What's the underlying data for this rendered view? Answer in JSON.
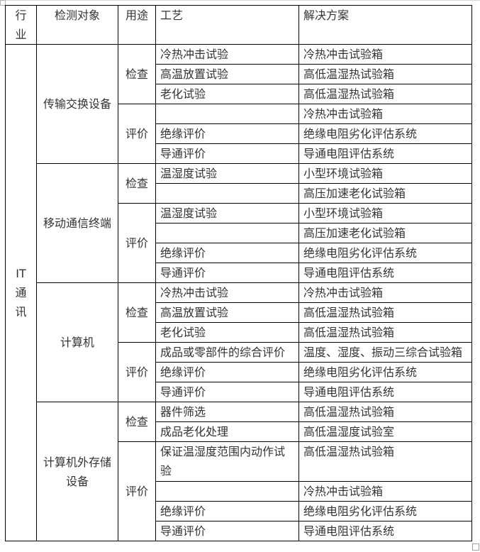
{
  "page": {
    "background": "#ffffff",
    "table_border_color": "#000000",
    "text_color": "#333333",
    "handle_border_color": "#a0a0a0"
  },
  "table": {
    "headers": {
      "industry": "行\n业",
      "object": "检测对象",
      "purpose": "用途",
      "process": "工艺",
      "solution": "解决方案"
    },
    "industry_label": "IT通讯",
    "industry_lines": "IT\n通\n讯",
    "sections": [
      {
        "object": "传输交换设备",
        "groups": [
          {
            "purpose": "检查",
            "rows": [
              {
                "process": "冷热冲击试验",
                "solution": "冷热冲击试验箱"
              },
              {
                "process": "高温放置试验",
                "solution": "高低温湿热试验箱"
              },
              {
                "process": "老化试验",
                "solution": "高低温湿热试验箱"
              }
            ]
          },
          {
            "purpose": "评价",
            "rows": [
              {
                "process": "",
                "solution": "冷热冲击试验箱"
              },
              {
                "process": "绝缘评价",
                "solution": "绝缘电阻劣化评估系统"
              },
              {
                "process": "导通评价",
                "solution": "导通电阻评估系统"
              }
            ]
          }
        ]
      },
      {
        "object": "移动通信终端",
        "groups": [
          {
            "purpose": "检查",
            "rows": [
              {
                "process": "温湿度试验",
                "solution": "小型环境试验箱"
              },
              {
                "process": "",
                "solution": "高压加速老化试验箱"
              }
            ]
          },
          {
            "purpose": "评价",
            "rows": [
              {
                "process": "温湿度试验",
                "solution": "小型环境试验箱"
              },
              {
                "process": "",
                "solution": "高压加速老化试验箱"
              },
              {
                "process": "绝缘评价",
                "solution": "绝缘电阻劣化评估系统"
              },
              {
                "process": "导通评价",
                "solution": "导通电阻评估系统"
              }
            ]
          }
        ]
      },
      {
        "object": "计算机",
        "groups": [
          {
            "purpose": "检查",
            "rows": [
              {
                "process": "冷热冲击试验",
                "solution": "冷热冲击试验箱"
              },
              {
                "process": "高温放置试验",
                "solution": "高低温湿热试验箱"
              },
              {
                "process": "老化试验",
                "solution": "高低温湿热试验箱"
              }
            ]
          },
          {
            "purpose": "评价",
            "rows": [
              {
                "process": "成品或零部件的综合评价",
                "solution": "温度、湿度、振动三综合试验箱"
              },
              {
                "process": "绝缘评价",
                "solution": "绝缘电阻劣化评估系统"
              },
              {
                "process": "导通评价",
                "solution": "导通电阻评估系统"
              }
            ]
          }
        ]
      },
      {
        "object": "计算机外存储设备",
        "groups": [
          {
            "purpose": "检查",
            "rows": [
              {
                "process": "器件筛选",
                "solution": "高低温湿热试验箱"
              },
              {
                "process": "成品老化处理",
                "solution": "高低温湿度试验室"
              }
            ]
          },
          {
            "purpose": "评价",
            "rows": [
              {
                "process": "保证温湿度范围内动作试验",
                "solution": "高低温湿热试验箱",
                "tall": true
              },
              {
                "process": "",
                "solution": "冷热冲击试验箱"
              },
              {
                "process": "绝缘评价",
                "solution": "绝缘电阻劣化评估系统"
              },
              {
                "process": "导通评价",
                "solution": "导通电阻评估系统"
              }
            ]
          }
        ]
      }
    ]
  }
}
